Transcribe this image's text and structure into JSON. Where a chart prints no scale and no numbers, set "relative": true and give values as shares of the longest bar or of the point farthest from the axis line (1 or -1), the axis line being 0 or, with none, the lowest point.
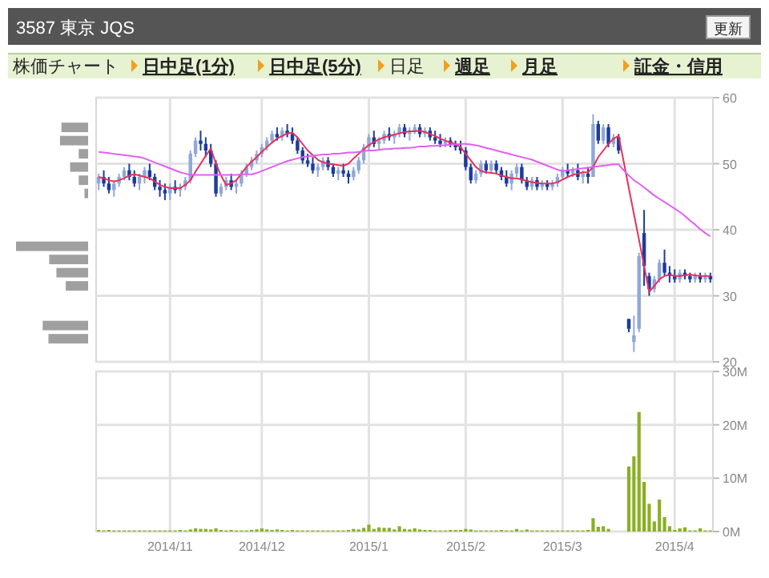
{
  "chart_data": [
    {
      "type": "candlestick",
      "title": "3587 東京 JQS",
      "annotations": [
        "更新",
        "株価チャート",
        "日中足(1分)",
        "日中足(5分)",
        "日足",
        "週足",
        "月足",
        "証金・信用"
      ],
      "categories": [
        null,
        null,
        null,
        null,
        null,
        null,
        null,
        null,
        null,
        null,
        null,
        null,
        null,
        null,
        "2014/11",
        null,
        null,
        null,
        null,
        null,
        null,
        null,
        null,
        null,
        null,
        null,
        null,
        null,
        null,
        null,
        null,
        null,
        "2014/12",
        null,
        null,
        null,
        null,
        null,
        null,
        null,
        null,
        null,
        null,
        null,
        null,
        null,
        null,
        null,
        null,
        null,
        null,
        null,
        null,
        "2015/1",
        null,
        null,
        null,
        null,
        null,
        null,
        null,
        null,
        null,
        null,
        null,
        null,
        null,
        null,
        null,
        null,
        null,
        null,
        "2015/2",
        null,
        null,
        null,
        null,
        null,
        null,
        null,
        null,
        null,
        null,
        null,
        null,
        null,
        null,
        null,
        null,
        null,
        null,
        "2015/3",
        null,
        null,
        null,
        null,
        null,
        null,
        null,
        null,
        null,
        null,
        null,
        null,
        null,
        null,
        null,
        null,
        null,
        null,
        null,
        null,
        null,
        "2015/4",
        null,
        null,
        null,
        null,
        null,
        null,
        null
      ],
      "ohlc": [
        [
          47,
          48.5,
          46,
          48
        ],
        [
          48,
          49,
          46.5,
          47
        ],
        [
          47,
          48,
          45.5,
          46
        ],
        [
          46,
          47.5,
          45,
          47
        ],
        [
          47,
          48.5,
          46.5,
          48
        ],
        [
          48,
          49.5,
          47.5,
          49
        ],
        [
          49,
          50,
          47.5,
          48
        ],
        [
          48,
          49,
          46.5,
          47
        ],
        [
          47,
          48.5,
          46,
          48
        ],
        [
          48,
          49.5,
          47,
          49
        ],
        [
          49,
          50,
          47.5,
          48
        ],
        [
          48,
          48.5,
          46,
          46.5
        ],
        [
          46.5,
          47.5,
          45,
          46
        ],
        [
          46,
          47,
          44.5,
          45.5
        ],
        [
          45.5,
          47,
          44.5,
          46.5
        ],
        [
          46.5,
          47.5,
          45.5,
          46
        ],
        [
          46,
          47,
          45,
          46.5
        ],
        [
          46.5,
          48,
          46,
          47.5
        ],
        [
          47.5,
          52,
          47,
          51.5
        ],
        [
          51.5,
          54,
          51,
          53.5
        ],
        [
          53.5,
          55,
          52,
          53
        ],
        [
          53,
          54,
          51,
          52
        ],
        [
          52,
          53,
          49.5,
          50
        ],
        [
          50,
          50.5,
          45,
          45.5
        ],
        [
          45.5,
          47,
          45,
          46.5
        ],
        [
          46.5,
          48,
          46,
          47.5
        ],
        [
          47.5,
          48.5,
          46,
          46.5
        ],
        [
          46.5,
          47.5,
          45.5,
          47
        ],
        [
          47,
          49,
          46.5,
          48.5
        ],
        [
          48.5,
          50,
          48,
          49.5
        ],
        [
          49.5,
          51,
          49,
          50.5
        ],
        [
          50.5,
          52,
          50,
          51.5
        ],
        [
          51.5,
          53,
          51,
          52.5
        ],
        [
          52.5,
          54,
          52,
          53.5
        ],
        [
          53.5,
          55,
          53,
          54.5
        ],
        [
          54.5,
          55.5,
          53.5,
          54
        ],
        [
          54,
          55.5,
          53.5,
          55
        ],
        [
          55,
          56,
          54,
          54.5
        ],
        [
          54.5,
          55.5,
          53,
          53.5
        ],
        [
          53.5,
          54,
          51.5,
          52
        ],
        [
          52,
          52.5,
          50,
          50.5
        ],
        [
          50.5,
          51.5,
          49.5,
          50
        ],
        [
          50,
          51,
          48.5,
          49
        ],
        [
          49,
          50,
          48,
          49.5
        ],
        [
          49.5,
          51,
          49,
          50.5
        ],
        [
          50.5,
          51,
          49,
          49.5
        ],
        [
          49.5,
          50,
          48,
          48.5
        ],
        [
          48.5,
          49.5,
          47.5,
          49
        ],
        [
          49,
          50,
          48,
          48.5
        ],
        [
          48.5,
          49,
          47,
          48
        ],
        [
          48,
          49.5,
          47.5,
          49
        ],
        [
          49,
          51,
          48.5,
          50.5
        ],
        [
          50.5,
          53,
          50,
          52.5
        ],
        [
          52.5,
          54.5,
          52,
          54
        ],
        [
          54,
          55,
          52.5,
          53
        ],
        [
          53,
          54,
          52,
          53.5
        ],
        [
          53.5,
          55,
          53,
          54.5
        ],
        [
          54.5,
          55.5,
          53.5,
          54
        ],
        [
          54,
          55,
          53,
          54.5
        ],
        [
          54.5,
          56,
          54,
          55.5
        ],
        [
          55.5,
          56,
          54,
          54.5
        ],
        [
          54.5,
          55.5,
          53.5,
          55
        ],
        [
          55,
          56,
          54.5,
          55.5
        ],
        [
          55.5,
          56,
          54,
          54.5
        ],
        [
          54.5,
          55.5,
          54,
          55
        ],
        [
          55,
          55.5,
          53.5,
          54
        ],
        [
          54,
          55,
          53,
          53.5
        ],
        [
          53.5,
          54.5,
          52.5,
          53
        ],
        [
          53,
          54,
          52.5,
          53.5
        ],
        [
          53.5,
          54,
          52.5,
          53
        ],
        [
          53,
          53.5,
          52,
          52.5
        ],
        [
          52.5,
          53.5,
          51.5,
          52
        ],
        [
          52,
          52.5,
          49,
          49.5
        ],
        [
          49.5,
          50,
          47,
          47.5
        ],
        [
          47.5,
          49,
          47,
          48.5
        ],
        [
          48.5,
          50.5,
          48,
          50
        ],
        [
          50,
          50.5,
          48.5,
          49
        ],
        [
          49,
          50.5,
          48.5,
          50
        ],
        [
          50,
          50.5,
          48.5,
          49
        ],
        [
          49,
          49.5,
          47.5,
          48
        ],
        [
          48,
          49,
          46.5,
          47
        ],
        [
          47,
          49,
          46,
          48.5
        ],
        [
          48.5,
          50,
          48,
          49.5
        ],
        [
          49.5,
          50,
          47,
          47.5
        ],
        [
          47.5,
          48,
          46,
          46.5
        ],
        [
          46.5,
          48,
          46,
          47.5
        ],
        [
          47.5,
          48,
          46,
          46.5
        ],
        [
          46.5,
          47.5,
          46,
          47
        ],
        [
          47,
          47.5,
          46,
          46.5
        ],
        [
          46.5,
          47.5,
          46,
          47
        ],
        [
          47,
          48.5,
          46.5,
          48
        ],
        [
          48,
          49.5,
          47.5,
          49
        ],
        [
          49,
          50,
          48,
          48.5
        ],
        [
          48.5,
          49.5,
          48,
          49
        ],
        [
          49,
          50,
          47.5,
          48
        ],
        [
          48,
          49,
          47,
          48.5
        ],
        [
          48.5,
          49.5,
          47,
          48
        ],
        [
          48,
          57.5,
          48,
          56
        ],
        [
          56,
          56.5,
          53,
          53.5
        ],
        [
          53.5,
          56,
          53,
          55.5
        ],
        [
          55.5,
          56,
          52.5,
          53
        ],
        [
          53,
          54.5,
          52.5,
          54
        ],
        [
          54,
          54.5,
          51.5,
          52
        ],
        null,
        [
          26.5,
          26.5,
          24.5,
          25
        ],
        [
          23,
          27,
          21.5,
          24
        ],
        [
          25,
          36.5,
          24.5,
          36
        ],
        [
          39.5,
          43,
          31.5,
          34.5
        ],
        [
          33,
          33.5,
          30,
          31
        ],
        [
          31,
          33,
          30.5,
          32.5
        ],
        [
          32.5,
          35.5,
          32,
          35
        ],
        [
          35,
          37,
          33,
          33.5
        ],
        [
          33.5,
          34.5,
          32,
          33
        ],
        [
          33,
          34,
          32,
          32.5
        ],
        [
          32.5,
          34,
          32,
          33.5
        ],
        [
          33.5,
          34,
          32.5,
          33
        ],
        [
          33,
          33.5,
          32,
          32.5
        ],
        [
          32.5,
          33.5,
          32,
          33
        ],
        [
          33,
          33.5,
          32,
          32.5
        ],
        [
          32.5,
          33.5,
          32,
          33
        ],
        [
          33,
          33.5,
          32,
          32.5
        ]
      ],
      "colors": [
        "#90a8d8",
        "#1c3c9c",
        "#1c3c9c",
        "#90a8d8",
        "#90a8d8",
        "#90a8d8",
        "#1c3c9c",
        "#1c3c9c",
        "#90a8d8",
        "#90a8d8",
        "#1c3c9c",
        "#1c3c9c",
        "#1c3c9c",
        "#1c3c9c",
        "#90a8d8",
        "#1c3c9c",
        "#90a8d8",
        "#90a8d8",
        "#90a8d8",
        "#90a8d8",
        "#1c3c9c",
        "#1c3c9c",
        "#1c3c9c",
        "#1c3c9c",
        "#90a8d8",
        "#90a8d8",
        "#1c3c9c",
        "#90a8d8",
        "#90a8d8",
        "#90a8d8",
        "#90a8d8",
        "#90a8d8",
        "#90a8d8",
        "#90a8d8",
        "#90a8d8",
        "#1c3c9c",
        "#90a8d8",
        "#1c3c9c",
        "#1c3c9c",
        "#1c3c9c",
        "#1c3c9c",
        "#1c3c9c",
        "#1c3c9c",
        "#90a8d8",
        "#90a8d8",
        "#1c3c9c",
        "#1c3c9c",
        "#90a8d8",
        "#1c3c9c",
        "#1c3c9c",
        "#90a8d8",
        "#90a8d8",
        "#90a8d8",
        "#90a8d8",
        "#1c3c9c",
        "#90a8d8",
        "#90a8d8",
        "#1c3c9c",
        "#90a8d8",
        "#90a8d8",
        "#1c3c9c",
        "#90a8d8",
        "#90a8d8",
        "#1c3c9c",
        "#90a8d8",
        "#1c3c9c",
        "#1c3c9c",
        "#1c3c9c",
        "#90a8d8",
        "#1c3c9c",
        "#1c3c9c",
        "#1c3c9c",
        "#1c3c9c",
        "#1c3c9c",
        "#90a8d8",
        "#90a8d8",
        "#1c3c9c",
        "#90a8d8",
        "#1c3c9c",
        "#1c3c9c",
        "#1c3c9c",
        "#90a8d8",
        "#90a8d8",
        "#1c3c9c",
        "#1c3c9c",
        "#90a8d8",
        "#1c3c9c",
        "#90a8d8",
        "#1c3c9c",
        "#90a8d8",
        "#90a8d8",
        "#90a8d8",
        "#1c3c9c",
        "#90a8d8",
        "#1c3c9c",
        "#90a8d8",
        "#1c3c9c",
        "#90a8d8",
        "#1c3c9c",
        "#90a8d8",
        "#1c3c9c",
        "#90a8d8",
        "#1c3c9c",
        null,
        "#1c3c9c",
        "#90a8d8",
        "#90a8d8",
        "#1c3c9c",
        "#1c3c9c",
        "#90a8d8",
        "#90a8d8",
        "#1c3c9c",
        "#1c3c9c",
        "#1c3c9c",
        "#90a8d8",
        "#1c3c9c",
        "#1c3c9c",
        "#90a8d8",
        "#1c3c9c",
        "#90a8d8",
        "#1c3c9c"
      ],
      "series": [
        {
          "type": "line",
          "color": "#e8305a",
          "values": [
            48,
            47.8,
            47.5,
            47.3,
            47.5,
            47.8,
            48.2,
            48.4,
            48.2,
            48,
            47.8,
            47.3,
            46.8,
            46.5,
            46.3,
            46.3,
            46.3,
            46.8,
            47.5,
            48.8,
            50,
            51.2,
            52.3,
            50,
            48.2,
            46.8,
            47,
            47.5,
            48.5,
            49.5,
            50.3,
            51,
            51.8,
            52.5,
            53.2,
            53.8,
            54.2,
            54.6,
            54.7,
            54,
            53,
            52,
            51.3,
            50.6,
            50.2,
            50,
            49.9,
            49.8,
            49.7,
            50,
            50.8,
            51.5,
            52.2,
            52.8,
            53.3,
            53.7,
            54,
            54.2,
            54.4,
            54.6,
            54.8,
            54.9,
            54.9,
            55,
            54.8,
            54.5,
            54.2,
            53.8,
            53.5,
            53.2,
            53,
            52.5,
            51.5,
            50.5,
            49.5,
            48.9,
            48.7,
            48.6,
            48.5,
            48.2,
            48,
            47.8,
            47.8,
            47.6,
            47.4,
            47.2,
            47.1,
            47,
            47,
            47,
            47.2,
            47.6,
            48,
            48.3,
            48.5,
            48.7,
            48.7,
            49.5,
            51,
            52,
            53,
            53.8,
            54.2,
            50.3,
            46.3,
            42.4,
            38.5,
            34.5,
            30.6,
            31.5,
            32.5,
            33,
            33.2,
            33,
            33,
            33.1,
            33.2,
            33.1,
            33,
            33,
            33
          ]
        },
        {
          "type": "line",
          "color": "#e060f0",
          "values": [
            51.8,
            51.7,
            51.6,
            51.5,
            51.4,
            51.3,
            51.2,
            51.1,
            51,
            50.8,
            50.5,
            50.2,
            49.9,
            49.6,
            49.3,
            49,
            48.7,
            48.5,
            48.3,
            48.3,
            48.3,
            48.3,
            48.3,
            48.3,
            48.3,
            48.3,
            48.3,
            48.3,
            48.4,
            48.4,
            48.4,
            48.6,
            48.9,
            49.2,
            49.5,
            49.8,
            50.1,
            50.4,
            50.6,
            50.8,
            51,
            51.1,
            51.2,
            51.3,
            51.4,
            51.4,
            51.5,
            51.5,
            51.6,
            51.7,
            51.7,
            51.8,
            51.9,
            52,
            52,
            52.1,
            52.2,
            52.2,
            52.3,
            52.3,
            52.4,
            52.4,
            52.5,
            52.6,
            52.6,
            52.7,
            52.7,
            52.8,
            52.8,
            52.9,
            52.9,
            53,
            53,
            52.9,
            52.8,
            52.6,
            52.4,
            52.2,
            52,
            51.8,
            51.6,
            51.4,
            51.2,
            51,
            50.8,
            50.6,
            50.3,
            50,
            49.7,
            49.4,
            49.1,
            48.9,
            49,
            49.1,
            49.2,
            49.3,
            49.4,
            49.5,
            49.6,
            49.7,
            49.8,
            49.9,
            49.9,
            49,
            48.2,
            47.5,
            47,
            46.4,
            45.8,
            45.2,
            44.7,
            44.2,
            43.7,
            43.2,
            42.7,
            42.1,
            41.4,
            40.8,
            40.1,
            39.5,
            39
          ]
        }
      ],
      "ylim": [
        20,
        60
      ],
      "yticks": [
        20,
        30,
        40,
        50,
        60
      ],
      "grid": true,
      "tick_labels": "y"
    },
    {
      "type": "bar",
      "orientation": "horizontal",
      "relative": true,
      "color": "#a0a0a0",
      "x": [
        55.5,
        53.5,
        51.5,
        49.5,
        47.5,
        45.5,
        37.5,
        35.5,
        33.5,
        31.5,
        25.5,
        23.5
      ],
      "values": [
        0.37,
        0.39,
        0.13,
        0.25,
        0.13,
        0.05,
        1,
        0.54,
        0.44,
        0.31,
        0.63,
        0.55
      ],
      "ylim": [
        20,
        60
      ],
      "tick_labels": false
    },
    {
      "type": "bar",
      "color": "#88b020",
      "categories": [
        null,
        null,
        null,
        null,
        null,
        null,
        null,
        null,
        null,
        null,
        null,
        null,
        null,
        null,
        "2014/11",
        null,
        null,
        null,
        null,
        null,
        null,
        null,
        null,
        null,
        null,
        null,
        null,
        null,
        null,
        null,
        null,
        null,
        "2014/12",
        null,
        null,
        null,
        null,
        null,
        null,
        null,
        null,
        null,
        null,
        null,
        null,
        null,
        null,
        null,
        null,
        null,
        null,
        null,
        null,
        "2015/1",
        null,
        null,
        null,
        null,
        null,
        null,
        null,
        null,
        null,
        null,
        null,
        null,
        null,
        null,
        null,
        null,
        null,
        null,
        "2015/2",
        null,
        null,
        null,
        null,
        null,
        null,
        null,
        null,
        null,
        null,
        null,
        null,
        null,
        null,
        null,
        null,
        null,
        null,
        "2015/3",
        null,
        null,
        null,
        null,
        null,
        null,
        null,
        null,
        null,
        null,
        null,
        null,
        null,
        null,
        null,
        null,
        null,
        null,
        null,
        null,
        null,
        "2015/4",
        null,
        null,
        null,
        null,
        null,
        null,
        null
      ],
      "values": [
        0.3,
        0.2,
        0.3,
        0.2,
        0.2,
        0.2,
        0.2,
        0.2,
        0.2,
        0.2,
        0.2,
        0.2,
        0.2,
        0.2,
        0.2,
        0.2,
        0.3,
        0.2,
        0.4,
        0.6,
        0.5,
        0.5,
        0.4,
        0.6,
        0.3,
        0.2,
        0.3,
        0.2,
        0.2,
        0.2,
        0.3,
        0.4,
        0.6,
        0.4,
        0.3,
        0.4,
        0.3,
        0.2,
        0.3,
        0.2,
        0.2,
        0.2,
        0.2,
        0.2,
        0.2,
        0.2,
        0.2,
        0.2,
        0.2,
        0.3,
        0.5,
        0.4,
        0.7,
        1.3,
        0.5,
        0.8,
        0.7,
        0.7,
        0.4,
        1.0,
        0.5,
        0.4,
        0.6,
        0.4,
        0.3,
        0.3,
        0.2,
        0.2,
        0.2,
        0.3,
        0.3,
        0.3,
        0.5,
        0.4,
        0.2,
        0.2,
        0.2,
        0.2,
        0.2,
        0.3,
        0.2,
        0.2,
        0.5,
        0.2,
        0.4,
        0.2,
        0.2,
        0.2,
        0.2,
        0.2,
        0.2,
        0.2,
        0.2,
        0.2,
        0.2,
        0.2,
        0.3,
        2.5,
        0.9,
        1.0,
        0.5,
        null,
        null,
        null,
        12.2,
        14.1,
        22.4,
        9.3,
        5.2,
        1.9,
        6.0,
        2.7,
        1.0,
        0.3,
        0.6,
        0.8,
        0.2,
        0.2,
        0.6,
        0.2,
        0.2
      ],
      "ylim": [
        0,
        30
      ],
      "yticks": [
        {
          "value": 0,
          "label": "0M"
        },
        {
          "value": 10,
          "label": "10M"
        },
        {
          "value": 20,
          "label": "20M"
        },
        {
          "value": 30,
          "label": "30M"
        }
      ],
      "grid": true
    }
  ]
}
